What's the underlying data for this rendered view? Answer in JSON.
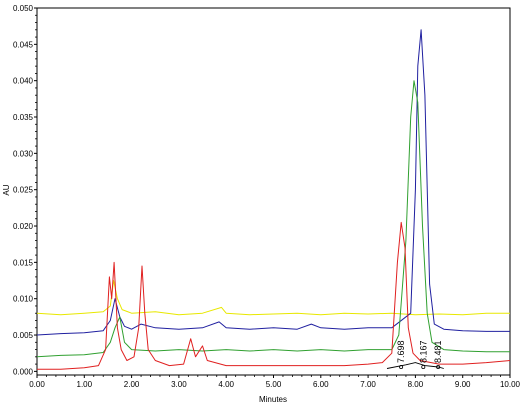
{
  "chart_data": {
    "type": "line",
    "xlabel": "Minutes",
    "ylabel": "AU",
    "xlim": [
      0,
      10
    ],
    "ylim": [
      -0.0005,
      0.05
    ],
    "x_ticks": [
      "0.00",
      "1.00",
      "2.00",
      "3.00",
      "4.00",
      "5.00",
      "6.00",
      "7.00",
      "8.00",
      "9.00",
      "10.00"
    ],
    "y_ticks": [
      "0.000",
      "0.005",
      "0.010",
      "0.015",
      "0.020",
      "0.025",
      "0.030",
      "0.035",
      "0.040",
      "0.045",
      "0.050"
    ],
    "grid": false,
    "series": [
      {
        "color": "#e8e800",
        "points": [
          [
            0,
            0.008
          ],
          [
            0.5,
            0.0078
          ],
          [
            1.0,
            0.008
          ],
          [
            1.4,
            0.0082
          ],
          [
            1.55,
            0.009
          ],
          [
            1.62,
            0.0125
          ],
          [
            1.7,
            0.01
          ],
          [
            1.8,
            0.0085
          ],
          [
            2.0,
            0.008
          ],
          [
            2.5,
            0.0082
          ],
          [
            3.0,
            0.0078
          ],
          [
            3.5,
            0.008
          ],
          [
            3.9,
            0.0088
          ],
          [
            4.0,
            0.008
          ],
          [
            4.5,
            0.0078
          ],
          [
            5.0,
            0.0079
          ],
          [
            5.5,
            0.008
          ],
          [
            6.0,
            0.0078
          ],
          [
            6.5,
            0.008
          ],
          [
            7.0,
            0.0079
          ],
          [
            7.5,
            0.008
          ],
          [
            8.0,
            0.0078
          ],
          [
            8.5,
            0.0079
          ],
          [
            9.0,
            0.0078
          ],
          [
            9.5,
            0.008
          ],
          [
            10.0,
            0.008
          ]
        ]
      },
      {
        "color": "#2020a0",
        "points": [
          [
            0,
            0.005
          ],
          [
            0.5,
            0.0052
          ],
          [
            1.0,
            0.0053
          ],
          [
            1.4,
            0.0056
          ],
          [
            1.55,
            0.007
          ],
          [
            1.65,
            0.01
          ],
          [
            1.75,
            0.0075
          ],
          [
            1.85,
            0.0062
          ],
          [
            2.0,
            0.0058
          ],
          [
            2.2,
            0.0065
          ],
          [
            2.5,
            0.006
          ],
          [
            3.0,
            0.0058
          ],
          [
            3.5,
            0.006
          ],
          [
            3.85,
            0.0068
          ],
          [
            4.0,
            0.006
          ],
          [
            4.5,
            0.0058
          ],
          [
            5.0,
            0.006
          ],
          [
            5.5,
            0.0058
          ],
          [
            5.8,
            0.0065
          ],
          [
            6.0,
            0.006
          ],
          [
            6.5,
            0.0058
          ],
          [
            7.0,
            0.006
          ],
          [
            7.5,
            0.006
          ],
          [
            7.9,
            0.008
          ],
          [
            8.0,
            0.025
          ],
          [
            8.05,
            0.042
          ],
          [
            8.12,
            0.047
          ],
          [
            8.2,
            0.038
          ],
          [
            8.3,
            0.012
          ],
          [
            8.4,
            0.0065
          ],
          [
            8.6,
            0.0058
          ],
          [
            9.0,
            0.0056
          ],
          [
            9.5,
            0.0055
          ],
          [
            10.0,
            0.0055
          ]
        ]
      },
      {
        "color": "#30a030",
        "points": [
          [
            0,
            0.002
          ],
          [
            0.5,
            0.0022
          ],
          [
            1.0,
            0.0023
          ],
          [
            1.4,
            0.0026
          ],
          [
            1.55,
            0.004
          ],
          [
            1.65,
            0.006
          ],
          [
            1.75,
            0.0075
          ],
          [
            1.85,
            0.004
          ],
          [
            2.0,
            0.003
          ],
          [
            2.5,
            0.0028
          ],
          [
            3.0,
            0.003
          ],
          [
            3.5,
            0.0028
          ],
          [
            4.0,
            0.003
          ],
          [
            4.5,
            0.0028
          ],
          [
            5.0,
            0.003
          ],
          [
            5.5,
            0.0028
          ],
          [
            6.0,
            0.003
          ],
          [
            6.5,
            0.0028
          ],
          [
            7.0,
            0.003
          ],
          [
            7.5,
            0.003
          ],
          [
            7.65,
            0.005
          ],
          [
            7.8,
            0.018
          ],
          [
            7.9,
            0.035
          ],
          [
            7.97,
            0.04
          ],
          [
            8.05,
            0.037
          ],
          [
            8.15,
            0.02
          ],
          [
            8.25,
            0.008
          ],
          [
            8.35,
            0.004
          ],
          [
            8.6,
            0.003
          ],
          [
            9.0,
            0.0028
          ],
          [
            9.5,
            0.0027
          ],
          [
            10.0,
            0.0027
          ]
        ]
      },
      {
        "color": "#e02020",
        "points": [
          [
            0,
            0.0003
          ],
          [
            0.5,
            0.0003
          ],
          [
            1.0,
            0.0005
          ],
          [
            1.3,
            0.0008
          ],
          [
            1.45,
            0.003
          ],
          [
            1.53,
            0.013
          ],
          [
            1.58,
            0.01
          ],
          [
            1.63,
            0.015
          ],
          [
            1.7,
            0.006
          ],
          [
            1.78,
            0.003
          ],
          [
            1.9,
            0.0015
          ],
          [
            2.05,
            0.002
          ],
          [
            2.15,
            0.006
          ],
          [
            2.22,
            0.0145
          ],
          [
            2.28,
            0.008
          ],
          [
            2.35,
            0.003
          ],
          [
            2.5,
            0.0015
          ],
          [
            2.8,
            0.0008
          ],
          [
            3.1,
            0.001
          ],
          [
            3.25,
            0.0045
          ],
          [
            3.35,
            0.002
          ],
          [
            3.5,
            0.0035
          ],
          [
            3.6,
            0.0015
          ],
          [
            4.0,
            0.0008
          ],
          [
            4.5,
            0.0008
          ],
          [
            5.0,
            0.0008
          ],
          [
            5.5,
            0.0008
          ],
          [
            6.0,
            0.0008
          ],
          [
            6.5,
            0.0008
          ],
          [
            7.0,
            0.001
          ],
          [
            7.3,
            0.0012
          ],
          [
            7.5,
            0.0025
          ],
          [
            7.62,
            0.015
          ],
          [
            7.7,
            0.0205
          ],
          [
            7.78,
            0.017
          ],
          [
            7.85,
            0.006
          ],
          [
            7.95,
            0.0025
          ],
          [
            8.1,
            0.0015
          ],
          [
            8.5,
            0.001
          ],
          [
            9.0,
            0.001
          ],
          [
            9.5,
            0.0012
          ],
          [
            10.0,
            0.0015
          ]
        ]
      }
    ],
    "annotations": [
      {
        "label": "7.698",
        "x": 7.698
      },
      {
        "label": "8.167",
        "x": 8.167
      },
      {
        "label": "8.481",
        "x": 8.481
      }
    ],
    "baseline": {
      "color": "#000000",
      "points": [
        [
          7.4,
          0.0004
        ],
        [
          7.8,
          0.0009
        ],
        [
          8.0,
          0.0012
        ],
        [
          8.2,
          0.0008
        ],
        [
          8.481,
          0.0006
        ],
        [
          8.6,
          0.0004
        ]
      ]
    }
  }
}
